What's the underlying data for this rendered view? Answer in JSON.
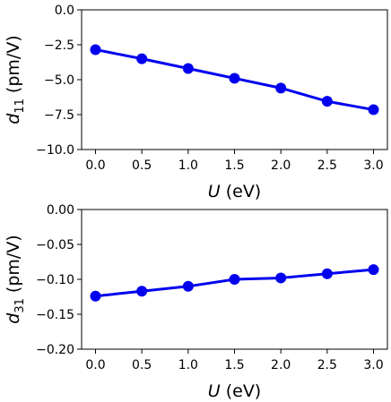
{
  "chart_data": [
    {
      "type": "line",
      "xlabel_var": "U",
      "xlabel_unit": "(eV)",
      "ylabel_base": "d",
      "ylabel_sub": "11",
      "ylabel_unit": "(pm/V)",
      "xlim": [
        -0.15,
        3.15
      ],
      "ylim": [
        -10.0,
        0.0
      ],
      "xticks": [
        "0.0",
        "0.5",
        "1.0",
        "1.5",
        "2.0",
        "2.5",
        "3.0"
      ],
      "yticks": [
        "0.0",
        "−2.5",
        "−5.0",
        "−7.5",
        "−10.0"
      ],
      "ytick_values": [
        0.0,
        -2.5,
        -5.0,
        -7.5,
        -10.0
      ],
      "series": [
        {
          "color": "#0000ee",
          "marker": "circle",
          "x": [
            0.0,
            0.5,
            1.0,
            1.5,
            2.0,
            2.5,
            3.0
          ],
          "y": [
            -2.85,
            -3.5,
            -4.2,
            -4.9,
            -5.6,
            -6.55,
            -7.15
          ]
        }
      ]
    },
    {
      "type": "line",
      "xlabel_var": "U",
      "xlabel_unit": "(eV)",
      "ylabel_base": "d",
      "ylabel_sub": "31",
      "ylabel_unit": "(pm/V)",
      "xlim": [
        -0.15,
        3.15
      ],
      "ylim": [
        -0.2,
        0.0
      ],
      "xticks": [
        "0.0",
        "0.5",
        "1.0",
        "1.5",
        "2.0",
        "2.5",
        "3.0"
      ],
      "yticks": [
        "0.00",
        "−0.05",
        "−0.10",
        "−0.15",
        "−0.20"
      ],
      "ytick_values": [
        0.0,
        -0.05,
        -0.1,
        -0.15,
        -0.2
      ],
      "series": [
        {
          "color": "#0000ee",
          "marker": "circle",
          "x": [
            0.0,
            0.5,
            1.0,
            1.5,
            2.0,
            2.5,
            3.0
          ],
          "y": [
            -0.124,
            -0.117,
            -0.11,
            -0.1,
            -0.098,
            -0.092,
            -0.086
          ]
        }
      ]
    }
  ]
}
